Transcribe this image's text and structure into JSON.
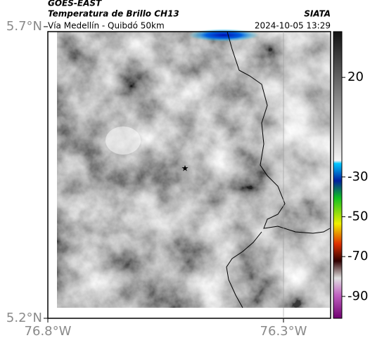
{
  "header": {
    "source": "GOES-EAST",
    "title": "Temperatura de Brillo CH13",
    "agency": "SIATA",
    "subtitle": "Vía Medellín - Quibdó 50km",
    "datetime": "2024-10-05 13:29"
  },
  "map": {
    "ylim": [
      5.2,
      5.6915
    ],
    "xlim": [
      -76.8,
      -76.2
    ],
    "yticks": [
      {
        "value": 5.7,
        "label": "5.7°N"
      },
      {
        "value": 5.2,
        "label": "5.2°N"
      }
    ],
    "xticks": [
      {
        "value": -76.8,
        "label": "76.8°W"
      },
      {
        "value": -76.3,
        "label": "76.3°W"
      }
    ]
  },
  "colorbar": {
    "lim": [
      -101,
      43
    ],
    "ticks": [
      20,
      -30,
      -50,
      -70,
      -90
    ]
  }
}
